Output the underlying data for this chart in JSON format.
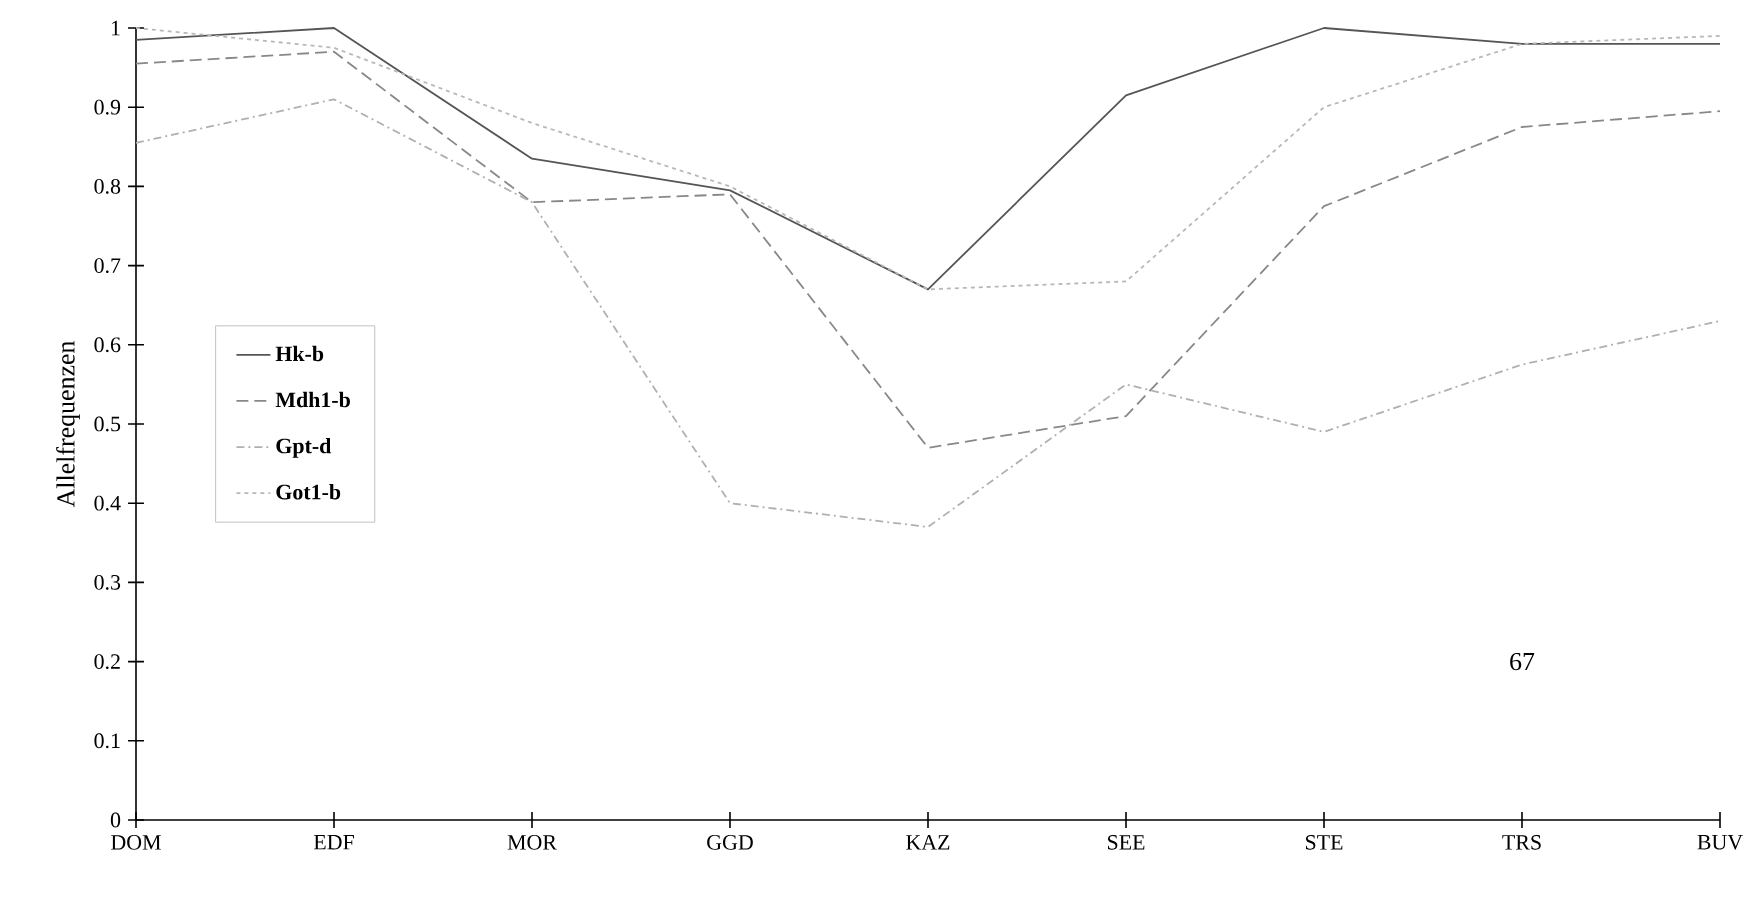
{
  "chart_data": {
    "type": "line",
    "ylabel": "Allelfrequenzen",
    "categories": [
      "DOM",
      "EDF",
      "MOR",
      "GGD",
      "KAZ",
      "SEE",
      "STE",
      "TRS",
      "BUV"
    ],
    "series": [
      {
        "name": "Hk-b",
        "color": "#555555",
        "line_style": "solid",
        "values": [
          0.985,
          1.0,
          0.835,
          0.795,
          0.67,
          0.915,
          1.0,
          0.98,
          0.98
        ]
      },
      {
        "name": "Mdh1-b",
        "color": "#888888",
        "line_style": "dashed",
        "values": [
          0.955,
          0.97,
          0.78,
          0.79,
          0.47,
          0.51,
          0.775,
          0.875,
          0.895
        ]
      },
      {
        "name": "Gpt-d",
        "color": "#b0b0b0",
        "line_style": "dashdotted",
        "values": [
          0.855,
          0.91,
          0.78,
          0.4,
          0.37,
          0.55,
          0.49,
          0.575,
          0.63
        ]
      },
      {
        "name": "Got1-b",
        "color": "#b8b8b8",
        "line_style": "dotted",
        "values": [
          1.0,
          0.975,
          0.88,
          0.8,
          0.67,
          0.68,
          0.9,
          0.98,
          0.99
        ]
      }
    ],
    "ylim": [
      0,
      1
    ],
    "yticks": [
      0,
      0.1,
      0.2,
      0.3,
      0.4,
      0.5,
      0.6,
      0.7,
      0.8,
      0.9,
      1
    ],
    "grid": false,
    "legend": "left",
    "marker": "none",
    "annotations": [
      "67"
    ]
  }
}
